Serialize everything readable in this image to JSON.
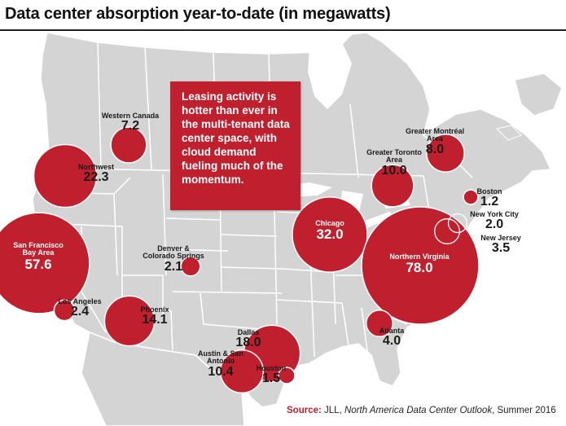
{
  "title": "Data center absorption year-to-date (in megawatts)",
  "callout": "Leasing activity is hotter than ever in the multi-tenant data center space, with cloud demand fueling much of the momentum.",
  "source": {
    "label": "Source:",
    "org": "JLL,",
    "publication": "North America Data Center Outlook",
    "edition": ", Summer 2016"
  },
  "colors": {
    "marker": "#c0202e",
    "land": "#d4d4d4",
    "border": "#ffffff",
    "callout_bg": "#c0202e"
  },
  "markets": [
    {
      "id": "western-canada",
      "name": "Western Canada",
      "value": "7.2"
    },
    {
      "id": "northwest",
      "name": "Northwest",
      "value": "22.3"
    },
    {
      "id": "san-francisco",
      "name": "San Francisco Bay Area",
      "value": "57.6"
    },
    {
      "id": "los-angeles",
      "name": "Los Angeles",
      "value": "2.4"
    },
    {
      "id": "phoenix",
      "name": "Phoenix",
      "value": "14.1"
    },
    {
      "id": "denver",
      "name": "Denver & Colorado Springs",
      "value": "2.1"
    },
    {
      "id": "dallas",
      "name": "Dallas",
      "value": "18.0"
    },
    {
      "id": "austin",
      "name": "Austin & San Antonio",
      "value": "10.4"
    },
    {
      "id": "houston",
      "name": "Houston",
      "value": "1.5"
    },
    {
      "id": "chicago",
      "name": "Chicago",
      "value": "32.0"
    },
    {
      "id": "northern-virginia",
      "name": "Northern Virginia",
      "value": "78.0"
    },
    {
      "id": "atlanta",
      "name": "Atlanta",
      "value": "4.0"
    },
    {
      "id": "toronto",
      "name": "Greater Toronto Area",
      "value": "10.0"
    },
    {
      "id": "montreal",
      "name": "Greater Montréal Area",
      "value": "8.0"
    },
    {
      "id": "boston",
      "name": "Boston",
      "value": "1.2"
    },
    {
      "id": "new-york",
      "name": "New York City",
      "value": "2.0"
    },
    {
      "id": "new-jersey",
      "name": "New Jersey",
      "value": "3.5"
    }
  ]
}
